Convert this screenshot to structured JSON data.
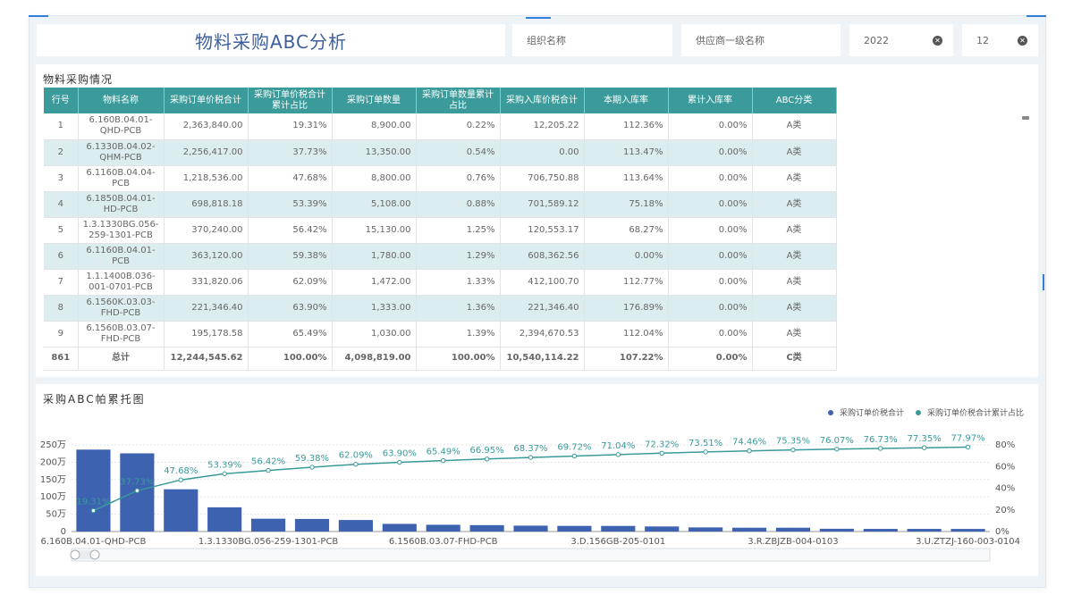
{
  "header": {
    "title": "物料采购ABC分析",
    "filters": [
      {
        "placeholder": "组织名称",
        "value": ""
      },
      {
        "placeholder": "供应商一级名称",
        "value": ""
      },
      {
        "value": "2022"
      },
      {
        "value": "12"
      }
    ]
  },
  "table_panel": {
    "title": "物料采购情况",
    "columns": [
      "行号",
      "物料名称",
      "采购订单价税合计",
      "采购订单价税合计累计占比",
      "采购订单数量",
      "采购订单数量累计占比",
      "采购入库价税合计",
      "本期入库率",
      "累计入库率",
      "ABC分类"
    ],
    "rows": [
      [
        "1",
        "6.160B.04.01-QHD-PCB",
        "2,363,840.00",
        "19.31%",
        "8,900.00",
        "0.22%",
        "12,205.22",
        "112.36%",
        "0.00%",
        "A类"
      ],
      [
        "2",
        "6.1330B.04.02-QHM-PCB",
        "2,256,417.00",
        "37.73%",
        "13,350.00",
        "0.54%",
        "0.00",
        "113.47%",
        "0.00%",
        "A类"
      ],
      [
        "3",
        "6.1160B.04.04-PCB",
        "1,218,536.00",
        "47.68%",
        "8,800.00",
        "0.76%",
        "706,750.88",
        "113.64%",
        "0.00%",
        "A类"
      ],
      [
        "4",
        "6.1850B.04.01-HD-PCB",
        "698,818.18",
        "53.39%",
        "5,108.00",
        "0.88%",
        "701,589.12",
        "75.18%",
        "0.00%",
        "A类"
      ],
      [
        "5",
        "1.3.1330BG.056-259-1301-PCB",
        "370,240.00",
        "56.42%",
        "15,130.00",
        "1.25%",
        "120,553.17",
        "68.27%",
        "0.00%",
        "A类"
      ],
      [
        "6",
        "6.1160B.04.01-PCB",
        "363,120.00",
        "59.38%",
        "1,780.00",
        "1.29%",
        "608,362.56",
        "0.00%",
        "0.00%",
        "A类"
      ],
      [
        "7",
        "1.1.1400B.036-001-0701-PCB",
        "331,820.06",
        "62.09%",
        "1,472.00",
        "1.33%",
        "412,100.70",
        "112.77%",
        "0.00%",
        "A类"
      ],
      [
        "8",
        "6.1560K.03.03-FHD-PCB",
        "221,346.40",
        "63.90%",
        "1,333.00",
        "1.36%",
        "221,346.40",
        "176.89%",
        "0.00%",
        "A类"
      ],
      [
        "9",
        "6.1560B.03.07-FHD-PCB",
        "195,178.58",
        "65.49%",
        "1,030.00",
        "1.39%",
        "2,394,670.53",
        "112.04%",
        "0.00%",
        "A类"
      ]
    ],
    "total": [
      "861",
      "总计",
      "12,244,545.62",
      "100.00%",
      "4,098,819.00",
      "100.00%",
      "10,540,114.22",
      "107.22%",
      "0.00%",
      "C类"
    ]
  },
  "chart_panel": {
    "title": "采购ABC帕累托图"
  },
  "colors": {
    "accent": "#2f7fd8",
    "table_header": "#3b9b9b",
    "row_alt": "#dcedf0",
    "bar": "#3c62b0",
    "line": "#3a9a9a"
  },
  "chart_data": {
    "type": "bar",
    "legend": [
      "采购订单价税合计",
      "采购订单价税合计累计占比"
    ],
    "legend_position": "top-right",
    "x_tick_labels": [
      "6.160B.04.01-QHD-PCB",
      "1.3.1330BG.056-259-1301-PCB",
      "6.1560B.03.07-FHD-PCB",
      "3.D.156GB-205-0101",
      "3.R.ZBJZB-004-0103",
      "3.U.ZTZJ-160-003-0104"
    ],
    "y_left_ticks": [
      "0",
      "50万",
      "100万",
      "150万",
      "200万",
      "250万"
    ],
    "y_left_range": [
      0,
      250
    ],
    "y_right_ticks": [
      "0%",
      "20%",
      "40%",
      "60%",
      "80%"
    ],
    "y_right_range": [
      0,
      80
    ],
    "series": [
      {
        "name": "采购订单价税合计",
        "type": "bar",
        "values": [
          236.4,
          225.6,
          121.9,
          69.9,
          37.0,
          36.3,
          33.2,
          22.1,
          19.5,
          18.5,
          17.0,
          16.3,
          16.2,
          14.6,
          11.9,
          11.0,
          11.0,
          8.0,
          7.6,
          7.6,
          7.5
        ]
      },
      {
        "name": "采购订单价税合计累计占比",
        "type": "line",
        "values": [
          19.31,
          37.73,
          47.68,
          53.39,
          56.42,
          59.38,
          62.09,
          63.9,
          65.49,
          66.95,
          68.37,
          69.72,
          71.04,
          72.32,
          73.51,
          74.46,
          75.35,
          76.07,
          76.73,
          77.35,
          77.97
        ],
        "labels": [
          "19.31%",
          "37.73%",
          "47.68%",
          "53.39%",
          "56.42%",
          "59.38%",
          "62.09%",
          "63.90%",
          "65.49%",
          "66.95%",
          "68.37%",
          "69.72%",
          "71.04%",
          "72.32%",
          "73.51%",
          "74.46%",
          "75.35%",
          "76.07%",
          "76.73%",
          "77.35%",
          "77.97%"
        ]
      }
    ],
    "grid": true
  }
}
